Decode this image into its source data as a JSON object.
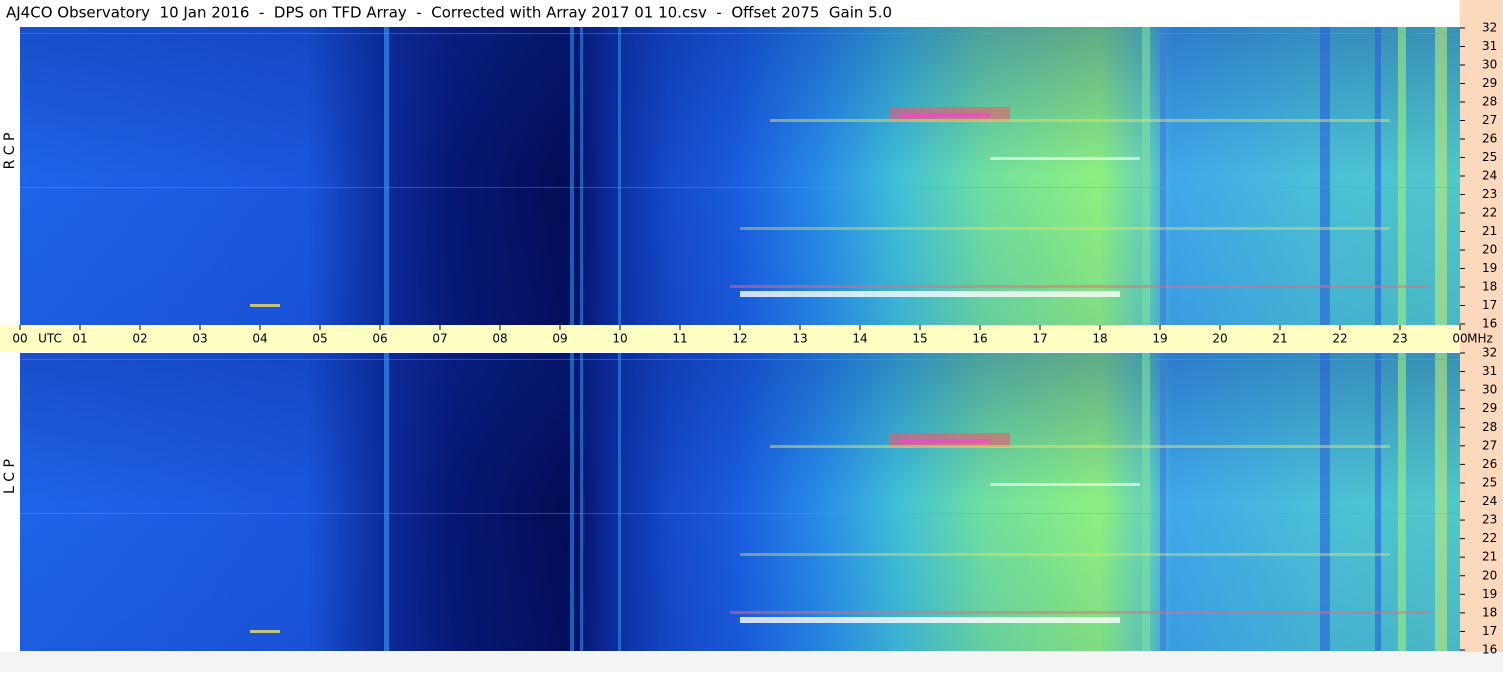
{
  "chart_data": {
    "type": "spectrogram",
    "title": "AJ4CO Observatory  10 Jan 2016  -  DPS on TFD Array  -  Corrected with Array 2017 01 10.csv  -  Offset 2075  Gain 5.0",
    "x_label": "UTC",
    "y_label": "MHz",
    "xlim": [
      0,
      24
    ],
    "xticks": [
      {
        "value": 0,
        "label": "00"
      },
      {
        "value": 1,
        "label": "01"
      },
      {
        "value": 2,
        "label": "02"
      },
      {
        "value": 3,
        "label": "03"
      },
      {
        "value": 4,
        "label": "04"
      },
      {
        "value": 5,
        "label": "05"
      },
      {
        "value": 6,
        "label": "06"
      },
      {
        "value": 7,
        "label": "07"
      },
      {
        "value": 8,
        "label": "08"
      },
      {
        "value": 9,
        "label": "09"
      },
      10,
      11,
      12,
      13,
      14,
      15,
      16,
      17,
      18,
      19,
      20,
      21,
      22,
      23,
      {
        "value": 24,
        "label": "00"
      }
    ],
    "ylim": [
      16,
      32
    ],
    "yticks": [
      16,
      17,
      18,
      19,
      20,
      21,
      22,
      23,
      24,
      25,
      26,
      27,
      28,
      29,
      30,
      31,
      32
    ],
    "panels": [
      {
        "label": "R C P"
      },
      {
        "label": "L C P"
      }
    ]
  }
}
